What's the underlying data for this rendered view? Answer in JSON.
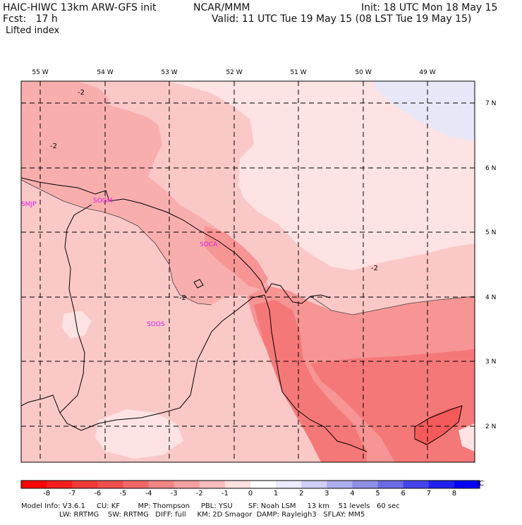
{
  "header": {
    "model_title": "HAIC-HIWC 13km ARW-GFS init",
    "source": "NCAR/MMM",
    "init": "Init: 18 UTC Mon 18 May 15",
    "fcst": "Fcst:   17 h",
    "valid": "Valid: 11 UTC Tue 19 May 15 (08 LST Tue 19 May 15)",
    "field": "Lifted index"
  },
  "map": {
    "lon_labels": [
      "55 W",
      "54 W",
      "53 W",
      "52 W",
      "51 W",
      "50 W",
      "49 W"
    ],
    "lat_labels": [
      "7 N",
      "6 N",
      "5 N",
      "4 N",
      "3 N",
      "2 N"
    ],
    "stations": [
      "SMJP",
      "SOGM",
      "SOCA",
      "SOOS"
    ],
    "contour_labels": [
      "-2",
      "-2",
      "-2",
      "-2"
    ],
    "colors": {
      "li_m6": "#f45a5a",
      "li_m5": "#f57878",
      "li_m4": "#f79494",
      "li_m3": "#f9aeae",
      "li_m2": "#fbc8c8",
      "li_m1": "#fde3e3",
      "li_p1": "#e7e7f7",
      "station": "#e01ee0"
    }
  },
  "colorbar": {
    "unit": "°C",
    "labels": [
      "-8",
      "-7",
      "-6",
      "-5",
      "-4",
      "-3",
      "-2",
      "-1",
      "0",
      "1",
      "2",
      "3",
      "4",
      "5",
      "6",
      "7",
      "8"
    ],
    "colors": [
      "#ff0000",
      "#f81c1c",
      "#f23838",
      "#ee4e4e",
      "#f06868",
      "#f38585",
      "#f7a0a0",
      "#f9bbbb",
      "#fde0e0",
      "#ffffff",
      "#ececff",
      "#cfcff8",
      "#afafef",
      "#8f8fe8",
      "#6b6be6",
      "#4444ec",
      "#2020f2",
      "#0000ff"
    ]
  },
  "footer": {
    "line1": "Model Info: V3.6.1     CU: KF        MP: Thompson     PBL: YSU       SF: Noah LSM     13 km    51 levels   60 sec",
    "line2": "                 LW: RRTMG    SW: RRTMG   DIFF: full     KM: 2D Smagor  DAMP: Rayleigh3   SFLAY: MM5"
  }
}
